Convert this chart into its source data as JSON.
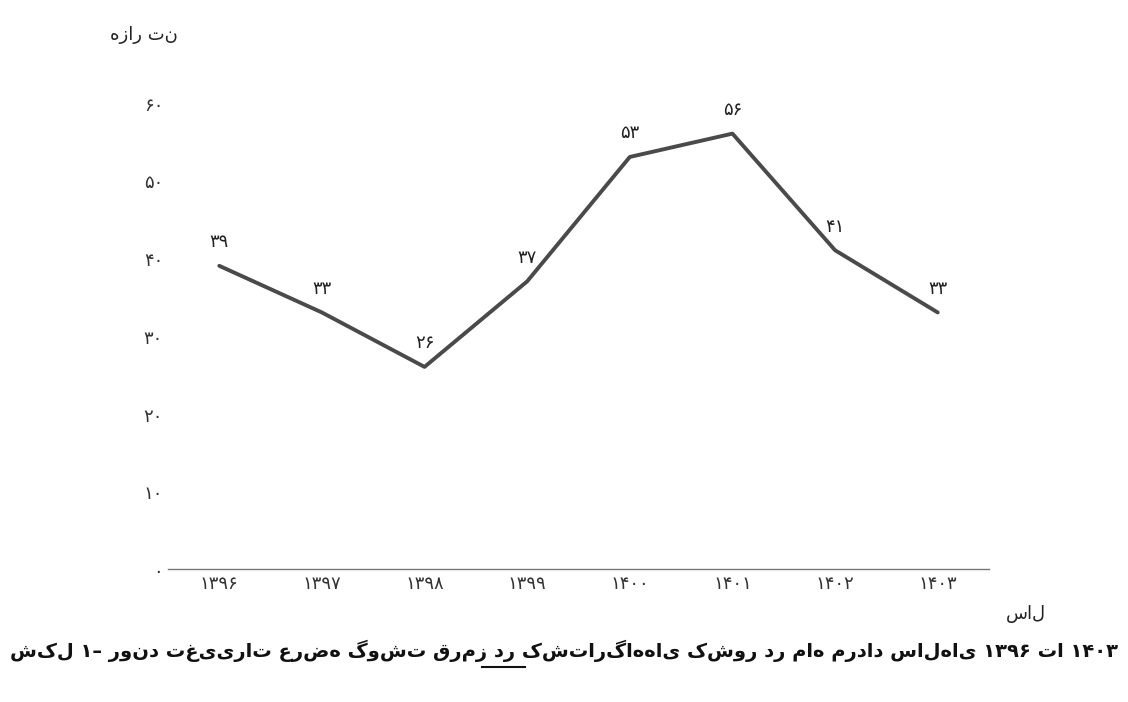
{
  "years": [
    "۱۳۹۶",
    "۱۳۹۷",
    "۱۳۹۸",
    "۱۳۹۹",
    "۱۴۰۰",
    "۱۴۰۱",
    "۱۴۰۲",
    "۱۴۰۳"
  ],
  "values": [
    39,
    33,
    26,
    37,
    53,
    56,
    41,
    33
  ],
  "value_labels": [
    "۳۹",
    "۳۳",
    "۲۶",
    "۳۷",
    "۵۳",
    "۵۶",
    "۴۱",
    "۳۳"
  ],
  "ytick_labels": [
    "۰",
    "۱۰",
    "۲۰",
    "۳۰",
    "۴۰",
    "۵۰",
    "۶۰"
  ],
  "ytick_values": [
    0,
    10,
    20,
    30,
    40,
    50,
    60
  ],
  "ylabel": "هزار تن",
  "xlabel": "سال",
  "line_color": "#4a4a4a",
  "line_width": 2.8,
  "ylim": [
    0,
    65
  ],
  "xlim": [
    -0.5,
    7.5
  ],
  "background_color": "#ffffff",
  "caption_part1": "شکل ۱– روند تغییرات عرضه گوشت قرمز در کشتارگاه‌های کشور در ماه ",
  "caption_underline": "مرداد",
  "caption_part2": " سال‌های ۱۳۹۶ تا ۱۴۰۳"
}
